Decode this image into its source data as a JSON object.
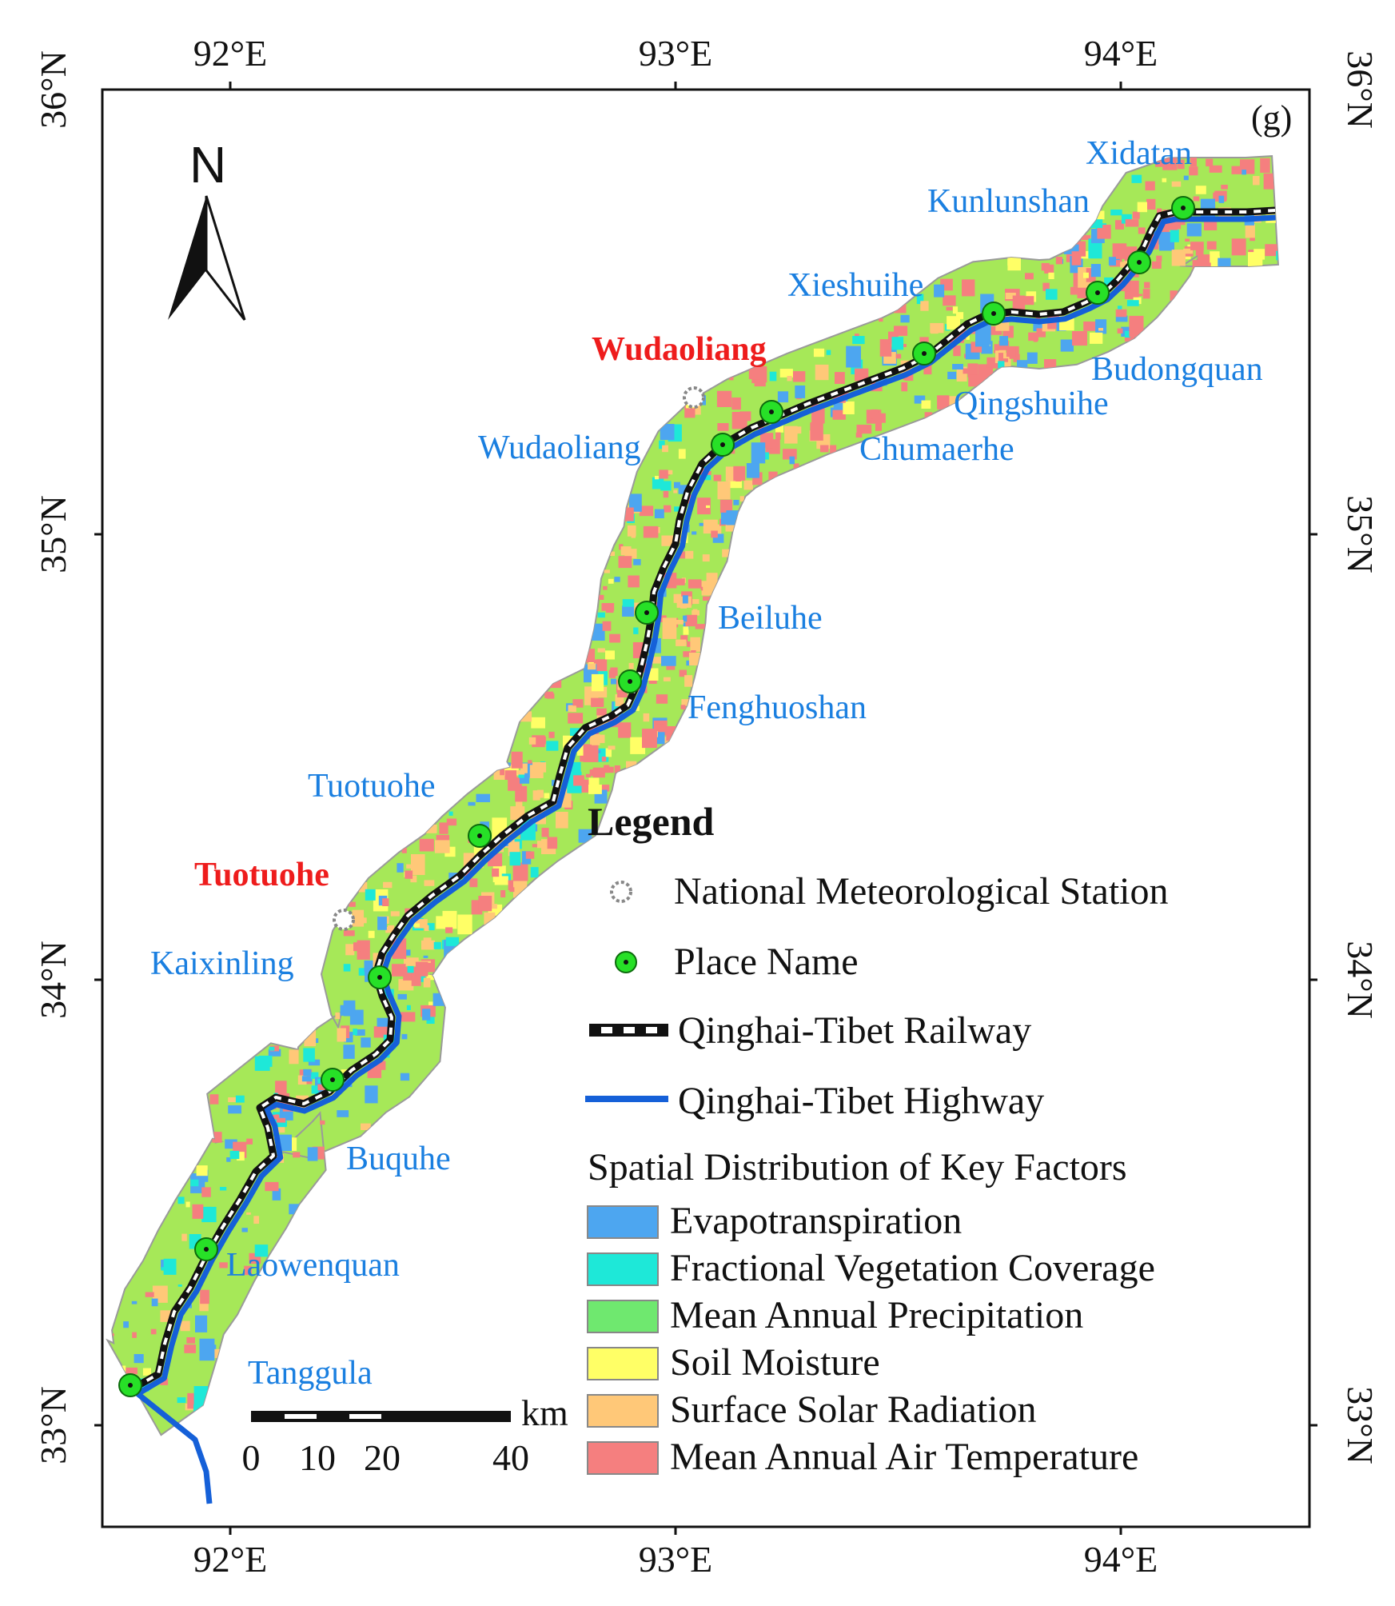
{
  "panel_label": "(g)",
  "north_label": "N",
  "axes": {
    "top_lon": [
      "92°E",
      "93°E",
      "94°E"
    ],
    "bottom_lon": [
      "92°E",
      "93°E",
      "94°E"
    ],
    "left_lat": [
      "36°N",
      "35°N",
      "34°N",
      "33°N"
    ],
    "right_lat": [
      "36°N",
      "35°N",
      "34°N",
      "33°N"
    ]
  },
  "places": [
    {
      "name": "Xidatan"
    },
    {
      "name": "Kunlunshan"
    },
    {
      "name": "Xieshuihe"
    },
    {
      "name": "Budongquan"
    },
    {
      "name": "Qingshuihe"
    },
    {
      "name": "Chumaerhe"
    },
    {
      "name": "Wudaoliang"
    },
    {
      "name": "Beiluhe"
    },
    {
      "name": "Fenghuoshan"
    },
    {
      "name": "Tuotuohe"
    },
    {
      "name": "Kaixinling"
    },
    {
      "name": "Buquhe"
    },
    {
      "name": "Laowenquan"
    },
    {
      "name": "Tanggula"
    }
  ],
  "stations": [
    {
      "name": "Wudaoliang"
    },
    {
      "name": "Tuotuohe"
    }
  ],
  "scale_bar": {
    "unit": "km",
    "ticks": [
      "0",
      "10",
      "20",
      "40"
    ]
  },
  "legend": {
    "title": "Legend",
    "station_label": "National Meteorological Station",
    "place_label": "Place Name",
    "railway_label": "Qinghai-Tibet Railway",
    "highway_label": "Qinghai-Tibet Highway",
    "factors_title": "Spatial Distribution of Key Factors",
    "factors": [
      {
        "label": "Evapotranspiration",
        "color": "#4da6f0"
      },
      {
        "label": "Fractional Vegetation Coverage",
        "color": "#1ee8d8"
      },
      {
        "label": "Mean Annual Precipitation",
        "color": "#6fe86f"
      },
      {
        "label": "Soil Moisture",
        "color": "#ffff66"
      },
      {
        "label": "Surface Solar Radiation",
        "color": "#ffc878"
      },
      {
        "label": "Mean Annual Air Temperature",
        "color": "#f57f7f"
      }
    ]
  },
  "colors": {
    "corridor_base": "#a6e858",
    "highway": "#1560d8",
    "place_marker": "#27e027",
    "place_label": "#1a7fe0",
    "station_label": "#ee1c1c"
  }
}
